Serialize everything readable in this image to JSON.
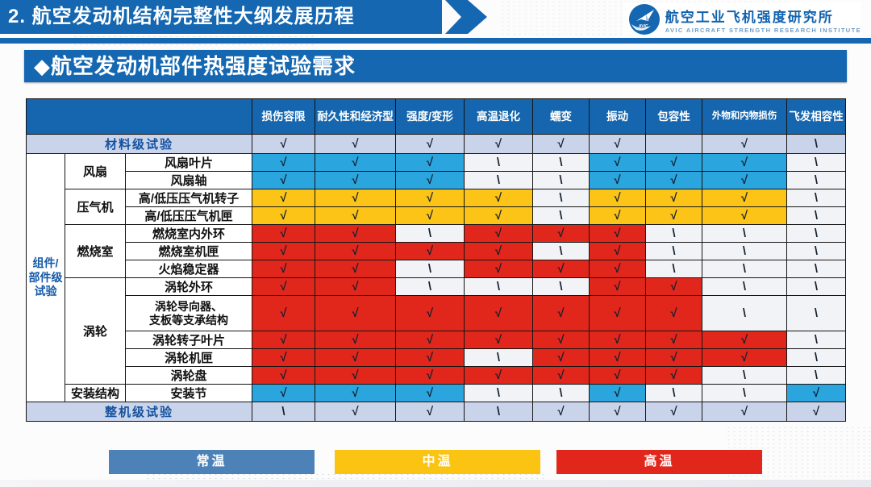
{
  "header": {
    "title": "2. 航空发动机结构完整性大纲发展历程",
    "logo": {
      "cn": "航空工业飞机强度研究所",
      "en": "AVIC  AIRCRAFT  STRENGTH  RESEARCH  INSTITUTE",
      "badge": "AVIC"
    }
  },
  "banner": {
    "title": "◆航空发动机部件热强度试验需求"
  },
  "table": {
    "columns": [
      "损伤容限",
      "耐久性和经济型",
      "强度/变形",
      "高温退化",
      "蠕变",
      "振动",
      "包容性",
      "外物和内物损伤",
      "飞发相容性"
    ],
    "material_row": {
      "label": "材料级试验",
      "cells": [
        "√",
        "√",
        "√",
        "√",
        "√",
        "√",
        "",
        "√",
        "\\"
      ]
    },
    "group_label": "组件/部件级试验",
    "rows": [
      {
        "sub": "风扇",
        "subspan": 2,
        "label": "风扇叶片",
        "cells": [
          "B√",
          "B√",
          "B√",
          "W\\",
          "W\\",
          "B√",
          "B√",
          "B√",
          "W\\"
        ]
      },
      {
        "label": "风扇轴",
        "cells": [
          "B√",
          "B√",
          "B√",
          "W\\",
          "W\\",
          "B√",
          "B√",
          "B√",
          "W\\"
        ]
      },
      {
        "sub": "压气机",
        "subspan": 2,
        "label": "高/低压压气机转子",
        "cells": [
          "Y√",
          "Y√",
          "Y√",
          "Y√",
          "W\\",
          "Y√",
          "Y√",
          "Y√",
          "W\\"
        ]
      },
      {
        "label": "高/低压压气机匣",
        "cells": [
          "Y√",
          "Y√",
          "Y√",
          "Y√",
          "W\\",
          "Y√",
          "Y√",
          "Y√",
          "W\\"
        ]
      },
      {
        "sub": "燃烧室",
        "subspan": 3,
        "label": "燃烧室内外环",
        "cells": [
          "R√",
          "R√",
          "W\\",
          "R√",
          "R√",
          "R√",
          "W\\",
          "W\\",
          "W\\"
        ]
      },
      {
        "label": "燃烧室机匣",
        "cells": [
          "R√",
          "R√",
          "R√",
          "R√",
          "W\\",
          "R√",
          "W\\",
          "W\\",
          "W\\"
        ]
      },
      {
        "label": "火焰稳定器",
        "cells": [
          "R√",
          "R√",
          "W\\",
          "R√",
          "R√",
          "R√",
          "W\\",
          "W\\",
          "W\\"
        ]
      },
      {
        "sub": "涡轮",
        "subspan": 5,
        "label": "涡轮外环",
        "cells": [
          "R√",
          "R√",
          "W\\",
          "W\\",
          "W\\",
          "R√",
          "R√",
          "W\\",
          "W\\"
        ]
      },
      {
        "label": "涡轮导向器、\n支板等支承结构",
        "tall": true,
        "cells": [
          "R√",
          "R√",
          "R√",
          "R√",
          "R√",
          "R√",
          "R√",
          "W\\",
          "W\\"
        ]
      },
      {
        "label": "涡轮转子叶片",
        "cells": [
          "R√",
          "R√",
          "R√",
          "R√",
          "R√",
          "R√",
          "R√",
          "R√",
          "W\\"
        ]
      },
      {
        "label": "涡轮机匣",
        "cells": [
          "R√",
          "R√",
          "R√",
          "W\\",
          "R√",
          "R√",
          "R√",
          "R√",
          "W\\"
        ]
      },
      {
        "label": "涡轮盘",
        "cells": [
          "R√",
          "R√",
          "R√",
          "R√",
          "R√",
          "R√",
          "R√",
          "W\\",
          "W\\"
        ]
      },
      {
        "sub": "安装结构",
        "subspan": 1,
        "label": "安装节",
        "cells": [
          "B√",
          "B√",
          "B√",
          "W\\",
          "W\\",
          "B√",
          "W\\",
          "W\\",
          "B√"
        ]
      }
    ],
    "whole_row": {
      "label": "整机级试验",
      "cells": [
        "\\",
        "√",
        "√",
        "\\",
        "√",
        "√",
        "√",
        "√",
        "√"
      ]
    }
  },
  "legend": [
    {
      "label": "常温",
      "color": "#4d82b8"
    },
    {
      "label": "中温",
      "color": "#fbc413"
    },
    {
      "label": "高温",
      "color": "#e1261c"
    }
  ],
  "colors": {
    "header_blue": "#1467b0",
    "cell_blue": "#2aa5de",
    "cell_yellow": "#fcc417",
    "cell_red": "#e1261c",
    "level_row_bg": "#c9d4ea"
  }
}
